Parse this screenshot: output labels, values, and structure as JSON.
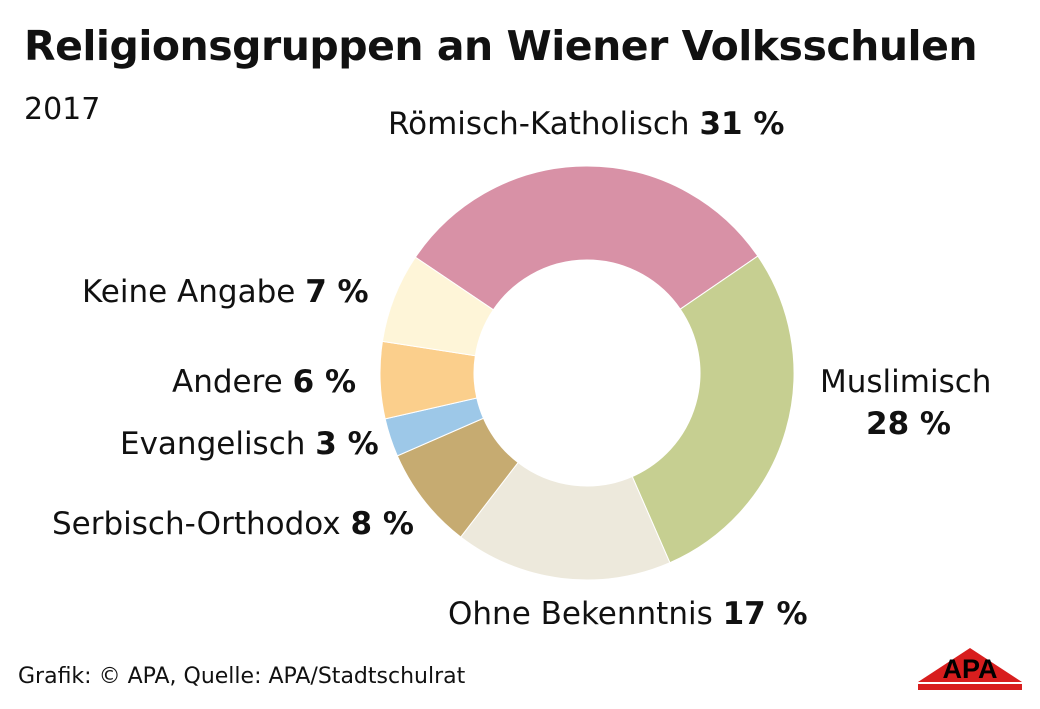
{
  "chart_data": {
    "type": "pie",
    "title": "Religionsgruppen an Wiener Volksschulen",
    "subtitle": "2017",
    "donut": true,
    "categories": [
      "Römisch-Katholisch",
      "Muslimisch",
      "Ohne Bekenntnis",
      "Serbisch-Orthodox",
      "Evangelisch",
      "Andere",
      "Keine Angabe"
    ],
    "values": [
      31,
      28,
      17,
      8,
      3,
      6,
      7
    ],
    "value_labels": [
      "31 %",
      "28 %",
      "17 %",
      "8 %",
      "3 %",
      "6 %",
      "7 %"
    ],
    "colors": [
      "#d891a6",
      "#c6cf91",
      "#ede9dc",
      "#c6ab71",
      "#9dc8e8",
      "#fbcf8c",
      "#fef5d8"
    ],
    "unit": "%"
  },
  "footer": {
    "source": "Grafik: © APA, Quelle: APA/Stadtschulrat",
    "logo_text": "APA"
  }
}
